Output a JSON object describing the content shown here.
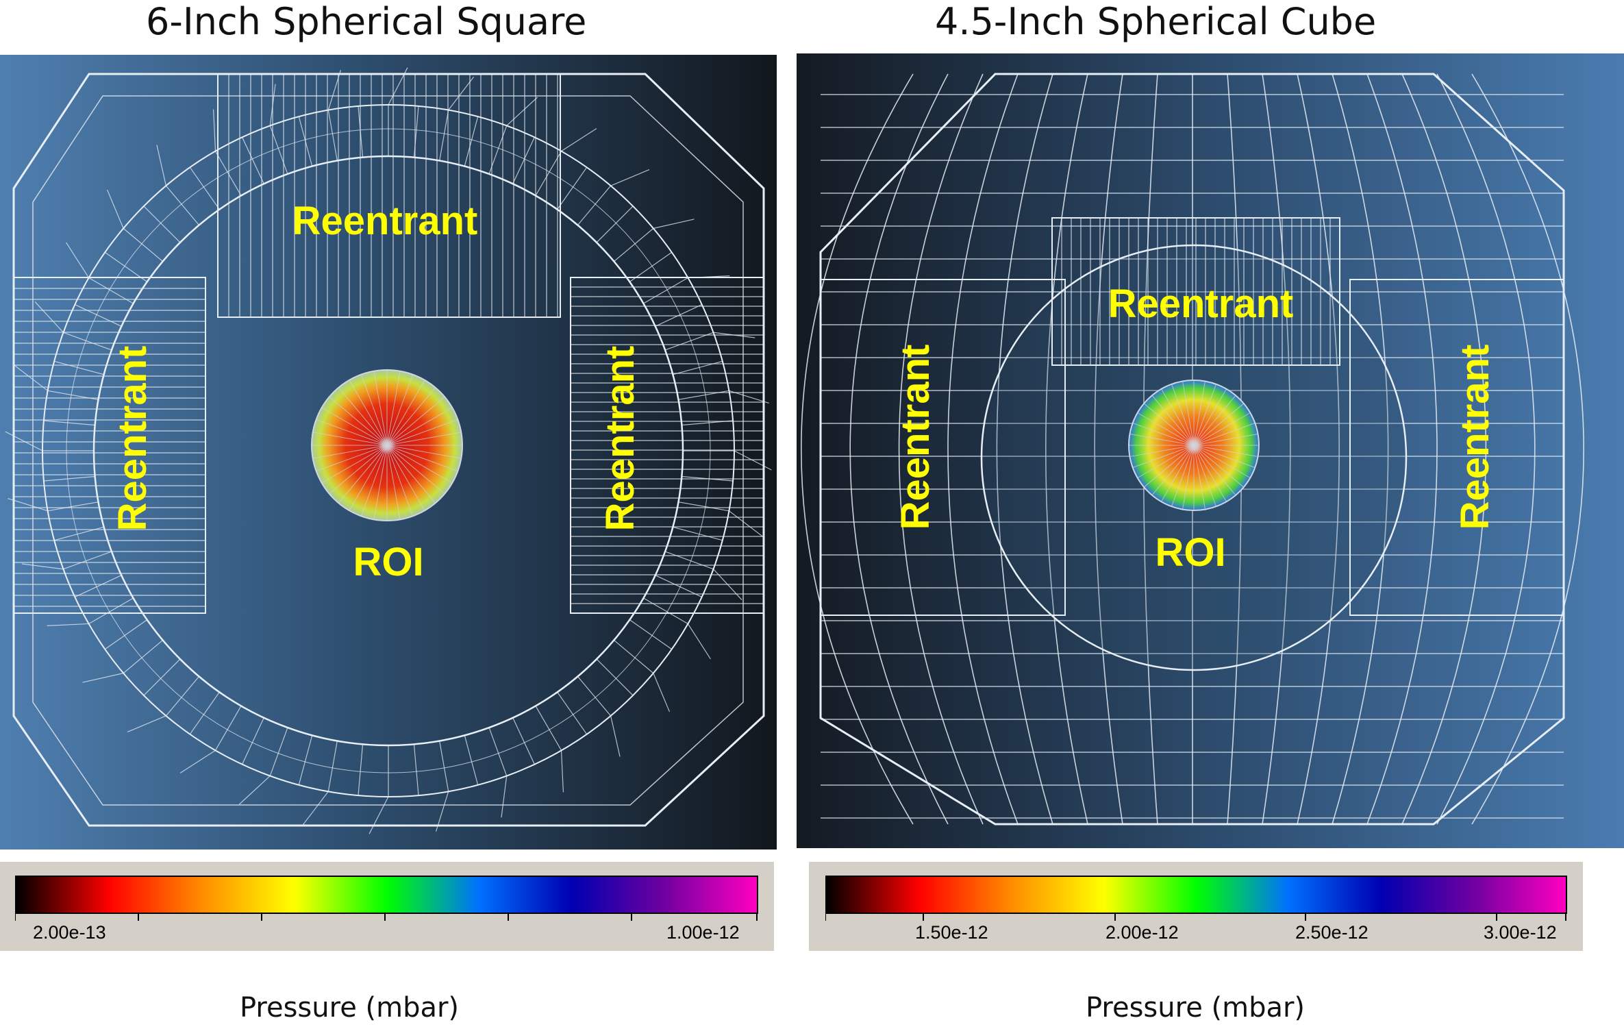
{
  "panels": [
    {
      "title": "6-Inch Spherical Square",
      "labels": [
        "Reentrant",
        "Reentrant",
        "Reentrant",
        "ROI"
      ],
      "colorbar": {
        "ticks": [
          "2.00e-13",
          "1.00e-12"
        ],
        "gradient": [
          "#000000",
          "#ff0000",
          "#ff8c00",
          "#ffff00",
          "#00ff00",
          "#0070ff",
          "#0000b0",
          "#7000a0",
          "#ff00c0"
        ]
      },
      "axis_title": "Pressure (mbar)"
    },
    {
      "title": "4.5-Inch Spherical Cube",
      "labels": [
        "Reentrant",
        "Reentrant",
        "Reentrant",
        "ROI"
      ],
      "colorbar": {
        "ticks": [
          "1.50e-12",
          "2.00e-12",
          "2.50e-12",
          "3.00e-12"
        ],
        "gradient": [
          "#000000",
          "#ff0000",
          "#ff8c00",
          "#ffff00",
          "#00ff00",
          "#0070ff",
          "#0000b0",
          "#7000a0",
          "#ff00c0"
        ]
      },
      "axis_title": "Pressure (mbar)"
    }
  ],
  "colors": {
    "label_yellow": "#ffff00",
    "mesh": "#e8eef5",
    "bg_left": "#4a78a8",
    "bg_dark": "#141a22",
    "frame_gray": "#d4d0c8"
  }
}
